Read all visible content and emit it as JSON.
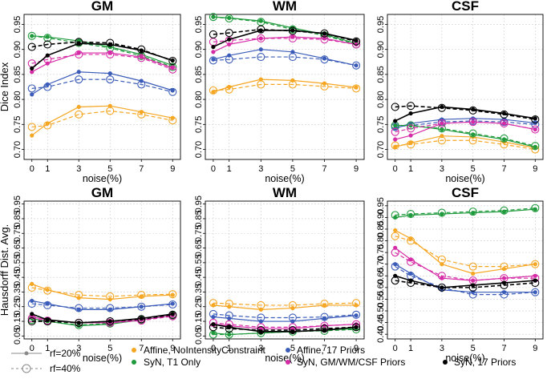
{
  "chart_data": [
    {
      "type": "line",
      "title": "GM",
      "xlabel": "noise(%)",
      "ylabel": "Dice Index",
      "x": [
        0,
        1,
        3,
        5,
        7,
        9
      ],
      "ylim": [
        0.68,
        0.97
      ],
      "yticks": [
        0.7,
        0.75,
        0.8,
        0.85,
        0.9,
        0.95
      ],
      "ytick_labels": [
        "0.70",
        "0.75",
        "0.80",
        "0.85",
        "0.90",
        "0.95"
      ],
      "series": [
        {
          "name": "Affine, NoIntensityConstraint",
          "rf": "20%",
          "values": [
            0.728,
            0.752,
            0.785,
            0.787,
            0.775,
            0.763
          ]
        },
        {
          "name": "Affine, NoIntensityConstraint",
          "rf": "40%",
          "values": [
            0.745,
            0.748,
            0.77,
            0.777,
            0.77,
            0.758
          ]
        },
        {
          "name": "Affine, 17 Priors",
          "rf": "20%",
          "values": [
            0.81,
            0.83,
            0.855,
            0.852,
            0.837,
            0.818
          ]
        },
        {
          "name": "Affine, 17 Priors",
          "rf": "40%",
          "values": [
            0.822,
            0.825,
            0.84,
            0.84,
            0.83,
            0.815
          ]
        },
        {
          "name": "SyN, T1 Only",
          "rf": "20%",
          "values": [
            0.927,
            0.925,
            0.917,
            0.905,
            0.89,
            0.868
          ]
        },
        {
          "name": "SyN, T1 Only",
          "rf": "40%",
          "values": [
            0.927,
            0.923,
            0.913,
            0.903,
            0.887,
            0.865
          ]
        },
        {
          "name": "SyN, GM/WM/CSF Priors",
          "rf": "20%",
          "values": [
            0.855,
            0.872,
            0.893,
            0.893,
            0.885,
            0.863
          ]
        },
        {
          "name": "SyN, GM/WM/CSF Priors",
          "rf": "40%",
          "values": [
            0.872,
            0.88,
            0.89,
            0.89,
            0.883,
            0.86
          ]
        },
        {
          "name": "SyN, 17 Priors",
          "rf": "20%",
          "values": [
            0.862,
            0.888,
            0.912,
            0.91,
            0.898,
            0.878
          ]
        },
        {
          "name": "SyN, 17 Priors",
          "rf": "40%",
          "values": [
            0.905,
            0.91,
            0.915,
            0.913,
            0.9,
            0.877
          ]
        }
      ]
    },
    {
      "type": "line",
      "title": "WM",
      "xlabel": "noise(%)",
      "ylabel": "",
      "x": [
        0,
        1,
        3,
        5,
        7,
        9
      ],
      "ylim": [
        0.68,
        0.97
      ],
      "yticks": [
        0.7,
        0.75,
        0.8,
        0.85,
        0.9,
        0.95
      ],
      "ytick_labels": [
        "0.70",
        "0.75",
        "0.80",
        "0.85",
        "0.90",
        "0.95"
      ],
      "series": [
        {
          "name": "Affine, NoIntensityConstraint",
          "rf": "20%",
          "values": [
            0.815,
            0.825,
            0.84,
            0.838,
            0.832,
            0.824
          ]
        },
        {
          "name": "Affine, NoIntensityConstraint",
          "rf": "40%",
          "values": [
            0.818,
            0.82,
            0.83,
            0.83,
            0.826,
            0.822
          ]
        },
        {
          "name": "Affine, 17 Priors",
          "rf": "20%",
          "values": [
            0.88,
            0.888,
            0.9,
            0.895,
            0.882,
            0.868
          ]
        },
        {
          "name": "Affine, 17 Priors",
          "rf": "40%",
          "values": [
            0.878,
            0.88,
            0.885,
            0.885,
            0.88,
            0.868
          ]
        },
        {
          "name": "SyN, T1 Only",
          "rf": "20%",
          "values": [
            0.965,
            0.963,
            0.957,
            0.943,
            0.93,
            0.912
          ]
        },
        {
          "name": "SyN, T1 Only",
          "rf": "40%",
          "values": [
            0.965,
            0.962,
            0.955,
            0.94,
            0.928,
            0.91
          ]
        },
        {
          "name": "SyN, GM/WM/CSF Priors",
          "rf": "20%",
          "values": [
            0.895,
            0.91,
            0.922,
            0.925,
            0.922,
            0.91
          ]
        },
        {
          "name": "SyN, GM/WM/CSF Priors",
          "rf": "40%",
          "values": [
            0.915,
            0.918,
            0.922,
            0.922,
            0.92,
            0.91
          ]
        },
        {
          "name": "SyN, 17 Priors",
          "rf": "20%",
          "values": [
            0.905,
            0.92,
            0.938,
            0.938,
            0.932,
            0.918
          ]
        },
        {
          "name": "SyN, 17 Priors",
          "rf": "40%",
          "values": [
            0.93,
            0.933,
            0.94,
            0.937,
            0.932,
            0.916
          ]
        }
      ]
    },
    {
      "type": "line",
      "title": "CSF",
      "xlabel": "noise(%)",
      "ylabel": "",
      "x": [
        0,
        1,
        3,
        5,
        7,
        9
      ],
      "ylim": [
        0.68,
        0.97
      ],
      "yticks": [
        0.7,
        0.75,
        0.8,
        0.85,
        0.9,
        0.95
      ],
      "ytick_labels": [
        "0.70",
        "0.75",
        "0.80",
        "0.85",
        "0.90",
        "0.95"
      ],
      "series": [
        {
          "name": "Affine, NoIntensityConstraint",
          "rf": "20%",
          "values": [
            0.705,
            0.713,
            0.727,
            0.725,
            0.715,
            0.703
          ]
        },
        {
          "name": "Affine, NoIntensityConstraint",
          "rf": "40%",
          "values": [
            0.708,
            0.71,
            0.718,
            0.718,
            0.71,
            0.7
          ]
        },
        {
          "name": "Affine, 17 Priors",
          "rf": "20%",
          "values": [
            0.742,
            0.752,
            0.76,
            0.762,
            0.76,
            0.753
          ]
        },
        {
          "name": "Affine, 17 Priors",
          "rf": "40%",
          "values": [
            0.745,
            0.748,
            0.755,
            0.757,
            0.755,
            0.75
          ]
        },
        {
          "name": "SyN, T1 Only",
          "rf": "20%",
          "values": [
            0.748,
            0.748,
            0.74,
            0.73,
            0.72,
            0.705
          ]
        },
        {
          "name": "SyN, T1 Only",
          "rf": "40%",
          "values": [
            0.748,
            0.748,
            0.742,
            0.732,
            0.722,
            0.707
          ]
        },
        {
          "name": "SyN, GM/WM/CSF Priors",
          "rf": "20%",
          "values": [
            0.72,
            0.728,
            0.752,
            0.755,
            0.752,
            0.74
          ]
        },
        {
          "name": "SyN, GM/WM/CSF Priors",
          "rf": "40%",
          "values": [
            0.735,
            0.742,
            0.752,
            0.755,
            0.752,
            0.74
          ]
        },
        {
          "name": "SyN, 17 Priors",
          "rf": "20%",
          "values": [
            0.757,
            0.772,
            0.785,
            0.78,
            0.772,
            0.762
          ]
        },
        {
          "name": "SyN, 17 Priors",
          "rf": "40%",
          "values": [
            0.785,
            0.787,
            0.783,
            0.778,
            0.77,
            0.76
          ]
        }
      ]
    },
    {
      "type": "line",
      "title": "GM",
      "xlabel": "noise(%)",
      "ylabel": "Hausdorff Dist. Avg.",
      "x": [
        0,
        1,
        3,
        5,
        7,
        9
      ],
      "ylim": [
        0.03,
        0.97
      ],
      "yticks": [
        0.05,
        0.15,
        0.25,
        0.35,
        0.45,
        0.55,
        0.65,
        0.75,
        0.85,
        0.95
      ],
      "ytick_labels": [
        "0.05",
        "0.15",
        "0.25",
        "0.35",
        "0.45",
        "0.55",
        "0.65",
        "0.75",
        "0.85",
        "0.95"
      ],
      "series": [
        {
          "name": "Affine, NoIntensityConstraint",
          "rf": "20%",
          "values": [
            0.405,
            0.365,
            0.31,
            0.3,
            0.32,
            0.33
          ]
        },
        {
          "name": "Affine, NoIntensityConstraint",
          "rf": "40%",
          "values": [
            0.38,
            0.36,
            0.33,
            0.32,
            0.33,
            0.335
          ]
        },
        {
          "name": "Affine, 17 Priors",
          "rf": "20%",
          "values": [
            0.29,
            0.27,
            0.23,
            0.23,
            0.25,
            0.27
          ]
        },
        {
          "name": "Affine, 17 Priors",
          "rf": "40%",
          "values": [
            0.27,
            0.26,
            0.24,
            0.24,
            0.25,
            0.265
          ]
        },
        {
          "name": "SyN, T1 Only",
          "rf": "20%",
          "values": [
            0.17,
            0.15,
            0.12,
            0.13,
            0.16,
            0.19
          ]
        },
        {
          "name": "SyN, T1 Only",
          "rf": "40%",
          "values": [
            0.16,
            0.15,
            0.125,
            0.135,
            0.16,
            0.19
          ]
        },
        {
          "name": "SyN, GM/WM/CSF Priors",
          "rf": "20%",
          "values": [
            0.18,
            0.16,
            0.14,
            0.14,
            0.16,
            0.19
          ]
        },
        {
          "name": "SyN, GM/WM/CSF Priors",
          "rf": "40%",
          "values": [
            0.17,
            0.155,
            0.14,
            0.14,
            0.155,
            0.185
          ]
        },
        {
          "name": "SyN, 17 Priors",
          "rf": "20%",
          "values": [
            0.2,
            0.16,
            0.14,
            0.15,
            0.17,
            0.2
          ]
        },
        {
          "name": "SyN, 17 Priors",
          "rf": "40%",
          "values": [
            0.15,
            0.15,
            0.14,
            0.15,
            0.165,
            0.195
          ]
        }
      ]
    },
    {
      "type": "line",
      "title": "WM",
      "xlabel": "noise(%)",
      "ylabel": "",
      "x": [
        0,
        1,
        3,
        5,
        7,
        9
      ],
      "ylim": [
        0.03,
        0.97
      ],
      "yticks": [
        0.05,
        0.15,
        0.25,
        0.35,
        0.45,
        0.55,
        0.65,
        0.75,
        0.85,
        0.95
      ],
      "ytick_labels": [
        "0.05",
        "0.15",
        "0.25",
        "0.35",
        "0.45",
        "0.55",
        "0.65",
        "0.75",
        "0.85",
        "0.95"
      ],
      "series": [
        {
          "name": "Affine, NoIntensityConstraint",
          "rf": "20%",
          "values": [
            0.26,
            0.25,
            0.23,
            0.24,
            0.26,
            0.26
          ]
        },
        {
          "name": "Affine, NoIntensityConstraint",
          "rf": "40%",
          "values": [
            0.275,
            0.27,
            0.26,
            0.26,
            0.27,
            0.275
          ]
        },
        {
          "name": "Affine, 17 Priors",
          "rf": "20%",
          "values": [
            0.18,
            0.17,
            0.15,
            0.15,
            0.17,
            0.19
          ]
        },
        {
          "name": "Affine, 17 Priors",
          "rf": "40%",
          "values": [
            0.2,
            0.19,
            0.175,
            0.175,
            0.18,
            0.195
          ]
        },
        {
          "name": "SyN, T1 Only",
          "rf": "20%",
          "values": [
            0.07,
            0.06,
            0.07,
            0.08,
            0.09,
            0.1
          ]
        },
        {
          "name": "SyN, T1 Only",
          "rf": "40%",
          "values": [
            0.06,
            0.06,
            0.07,
            0.08,
            0.085,
            0.095
          ]
        },
        {
          "name": "SyN, GM/WM/CSF Priors",
          "rf": "20%",
          "values": [
            0.13,
            0.12,
            0.1,
            0.1,
            0.12,
            0.13
          ]
        },
        {
          "name": "SyN, GM/WM/CSF Priors",
          "rf": "40%",
          "values": [
            0.14,
            0.13,
            0.11,
            0.11,
            0.12,
            0.13
          ]
        },
        {
          "name": "SyN, 17 Priors",
          "rf": "20%",
          "values": [
            0.13,
            0.11,
            0.08,
            0.08,
            0.09,
            0.11
          ]
        },
        {
          "name": "SyN, 17 Priors",
          "rf": "40%",
          "values": [
            0.11,
            0.1,
            0.09,
            0.09,
            0.1,
            0.11
          ]
        }
      ]
    },
    {
      "type": "line",
      "title": "CSF",
      "xlabel": "noise(%)",
      "ylabel": "",
      "x": [
        0,
        1,
        3,
        5,
        7,
        9
      ],
      "ylim": [
        0.38,
        0.97
      ],
      "yticks": [
        0.4,
        0.45,
        0.5,
        0.55,
        0.6,
        0.65,
        0.7,
        0.75,
        0.8,
        0.85,
        0.9,
        0.95
      ],
      "ytick_labels": [
        "0.40",
        "0.45",
        "0.50",
        "0.55",
        "0.60",
        "0.65",
        "0.70",
        "0.75",
        "0.80",
        "0.85",
        "0.90",
        "0.95"
      ],
      "series": [
        {
          "name": "Affine, NoIntensityConstraint",
          "rf": "20%",
          "values": [
            0.845,
            0.81,
            0.7,
            0.66,
            0.68,
            0.7
          ]
        },
        {
          "name": "Affine, NoIntensityConstraint",
          "rf": "40%",
          "values": [
            0.82,
            0.8,
            0.72,
            0.69,
            0.69,
            0.7
          ]
        },
        {
          "name": "Affine, 17 Priors",
          "rf": "20%",
          "values": [
            0.7,
            0.66,
            0.59,
            0.58,
            0.58,
            0.58
          ]
        },
        {
          "name": "Affine, 17 Priors",
          "rf": "40%",
          "values": [
            0.69,
            0.65,
            0.6,
            0.57,
            0.57,
            0.58
          ]
        },
        {
          "name": "SyN, T1 Only",
          "rf": "20%",
          "values": [
            0.9,
            0.91,
            0.915,
            0.92,
            0.925,
            0.935
          ]
        },
        {
          "name": "SyN, T1 Only",
          "rf": "40%",
          "values": [
            0.91,
            0.915,
            0.92,
            0.925,
            0.93,
            0.94
          ]
        },
        {
          "name": "SyN, GM/WM/CSF Priors",
          "rf": "20%",
          "values": [
            0.77,
            0.72,
            0.64,
            0.63,
            0.64,
            0.65
          ]
        },
        {
          "name": "SyN, GM/WM/CSF Priors",
          "rf": "40%",
          "values": [
            0.75,
            0.71,
            0.65,
            0.63,
            0.64,
            0.64
          ]
        },
        {
          "name": "SyN, 17 Priors",
          "rf": "20%",
          "values": [
            0.65,
            0.63,
            0.6,
            0.61,
            0.62,
            0.63
          ]
        },
        {
          "name": "SyN, 17 Priors",
          "rf": "40%",
          "values": [
            0.63,
            0.62,
            0.6,
            0.6,
            0.61,
            0.62
          ]
        }
      ]
    }
  ],
  "legend": {
    "line_styles": [
      {
        "label": "rf=20%",
        "style": "solid"
      },
      {
        "label": "rf=40%",
        "style": "dashed"
      }
    ],
    "methods": [
      {
        "label": "Affine, NoIntensityConstraint",
        "color": "#f5a623"
      },
      {
        "label": "Affine, 17 Priors",
        "color": "#3b5cb8"
      },
      {
        "label": "SyN, 17 Priors",
        "color": "#000000"
      },
      {
        "label": "SyN, T1 Only",
        "color": "#1f9a3c"
      },
      {
        "label": "SyN, GM/WM/CSF Priors",
        "color": "#d62ba6"
      }
    ]
  }
}
